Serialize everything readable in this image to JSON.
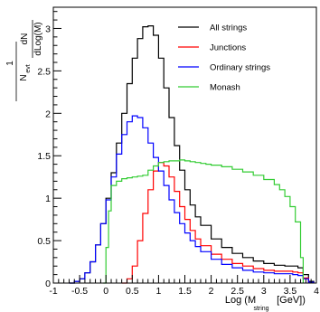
{
  "chart_data": {
    "type": "line",
    "title": "",
    "xlabel_main": "Log (M",
    "xlabel_sub": "string",
    "xlabel_tail": "[GeV])",
    "ylabel_prefix": "1",
    "ylabel_N": "N",
    "ylabel_N_sub": "evt",
    "ylabel_num": "dN",
    "ylabel_den": "dLog(M)",
    "xlim": [
      -1,
      4
    ],
    "ylim": [
      0,
      3.25
    ],
    "xticks": [
      -1,
      -0.5,
      0,
      0.5,
      1,
      1.5,
      2,
      2.5,
      3,
      3.5,
      4
    ],
    "xtick_labels": [
      "-1",
      "-0.5",
      "0",
      "0.5",
      "1",
      "1.5",
      "2",
      "2.5",
      "3",
      "3.5",
      "4"
    ],
    "yticks": [
      0,
      0.5,
      1,
      1.5,
      2,
      2.5,
      3
    ],
    "ytick_labels": [
      "0",
      "0.5",
      "1",
      "1.5",
      "2",
      "2.5",
      "3"
    ],
    "grid": false,
    "legend_position": "top-right",
    "series": [
      {
        "name": "All strings",
        "color": "#000000",
        "points": [
          [
            -0.7,
            0
          ],
          [
            -0.6,
            0.02
          ],
          [
            -0.5,
            0.05
          ],
          [
            -0.4,
            0.12
          ],
          [
            -0.3,
            0.25
          ],
          [
            -0.2,
            0.45
          ],
          [
            -0.1,
            0.7
          ],
          [
            0.0,
            1.0
          ],
          [
            0.1,
            1.3
          ],
          [
            0.2,
            1.65
          ],
          [
            0.3,
            2.0
          ],
          [
            0.4,
            2.35
          ],
          [
            0.5,
            2.65
          ],
          [
            0.6,
            2.88
          ],
          [
            0.7,
            3.02
          ],
          [
            0.8,
            3.03
          ],
          [
            0.9,
            2.92
          ],
          [
            1.0,
            2.65
          ],
          [
            1.1,
            2.3
          ],
          [
            1.2,
            1.95
          ],
          [
            1.3,
            1.62
          ],
          [
            1.4,
            1.33
          ],
          [
            1.5,
            1.1
          ],
          [
            1.6,
            0.92
          ],
          [
            1.7,
            0.78
          ],
          [
            1.8,
            0.68
          ],
          [
            2.0,
            0.52
          ],
          [
            2.2,
            0.42
          ],
          [
            2.4,
            0.35
          ],
          [
            2.6,
            0.3
          ],
          [
            2.8,
            0.26
          ],
          [
            3.0,
            0.23
          ],
          [
            3.2,
            0.21
          ],
          [
            3.4,
            0.2
          ],
          [
            3.55,
            0.2
          ],
          [
            3.65,
            0.18
          ],
          [
            3.75,
            0.1
          ],
          [
            3.85,
            0.02
          ],
          [
            3.95,
            0
          ]
        ]
      },
      {
        "name": "Junctions",
        "color": "#ff0000",
        "points": [
          [
            0.3,
            0
          ],
          [
            0.4,
            0.05
          ],
          [
            0.5,
            0.2
          ],
          [
            0.6,
            0.5
          ],
          [
            0.7,
            0.82
          ],
          [
            0.8,
            1.1
          ],
          [
            0.9,
            1.32
          ],
          [
            1.0,
            1.42
          ],
          [
            1.1,
            1.38
          ],
          [
            1.2,
            1.25
          ],
          [
            1.3,
            1.08
          ],
          [
            1.4,
            0.9
          ],
          [
            1.5,
            0.75
          ],
          [
            1.6,
            0.62
          ],
          [
            1.7,
            0.52
          ],
          [
            1.8,
            0.44
          ],
          [
            2.0,
            0.34
          ],
          [
            2.2,
            0.28
          ],
          [
            2.4,
            0.23
          ],
          [
            2.6,
            0.2
          ],
          [
            2.8,
            0.17
          ],
          [
            3.0,
            0.15
          ],
          [
            3.2,
            0.14
          ],
          [
            3.4,
            0.14
          ],
          [
            3.55,
            0.13
          ],
          [
            3.65,
            0.12
          ],
          [
            3.75,
            0.06
          ],
          [
            3.85,
            0.01
          ],
          [
            3.95,
            0
          ]
        ]
      },
      {
        "name": "Ordinary strings",
        "color": "#0000ff",
        "points": [
          [
            -0.7,
            0
          ],
          [
            -0.6,
            0.02
          ],
          [
            -0.5,
            0.05
          ],
          [
            -0.4,
            0.12
          ],
          [
            -0.3,
            0.25
          ],
          [
            -0.2,
            0.45
          ],
          [
            -0.1,
            0.7
          ],
          [
            0.0,
            0.98
          ],
          [
            0.1,
            1.25
          ],
          [
            0.2,
            1.52
          ],
          [
            0.3,
            1.75
          ],
          [
            0.4,
            1.9
          ],
          [
            0.5,
            1.97
          ],
          [
            0.6,
            1.95
          ],
          [
            0.7,
            1.83
          ],
          [
            0.8,
            1.65
          ],
          [
            0.9,
            1.48
          ],
          [
            1.0,
            1.32
          ],
          [
            1.1,
            1.15
          ],
          [
            1.2,
            0.98
          ],
          [
            1.3,
            0.83
          ],
          [
            1.4,
            0.7
          ],
          [
            1.5,
            0.59
          ],
          [
            1.6,
            0.5
          ],
          [
            1.7,
            0.43
          ],
          [
            1.8,
            0.37
          ],
          [
            2.0,
            0.28
          ],
          [
            2.2,
            0.22
          ],
          [
            2.4,
            0.18
          ],
          [
            2.6,
            0.15
          ],
          [
            2.8,
            0.13
          ],
          [
            3.0,
            0.12
          ],
          [
            3.2,
            0.11
          ],
          [
            3.4,
            0.11
          ],
          [
            3.55,
            0.1
          ],
          [
            3.65,
            0.09
          ],
          [
            3.75,
            0.05
          ],
          [
            3.85,
            0.01
          ],
          [
            3.95,
            0
          ]
        ]
      },
      {
        "name": "Monash",
        "color": "#33cc33",
        "points": [
          [
            -0.05,
            0
          ],
          [
            0.0,
            0.42
          ],
          [
            0.05,
            0.85
          ],
          [
            0.1,
            1.15
          ],
          [
            0.2,
            1.2
          ],
          [
            0.3,
            1.23
          ],
          [
            0.4,
            1.24
          ],
          [
            0.5,
            1.25
          ],
          [
            0.6,
            1.26
          ],
          [
            0.7,
            1.27
          ],
          [
            0.8,
            1.33
          ],
          [
            0.9,
            1.38
          ],
          [
            1.0,
            1.42
          ],
          [
            1.1,
            1.43
          ],
          [
            1.2,
            1.44
          ],
          [
            1.3,
            1.44
          ],
          [
            1.4,
            1.45
          ],
          [
            1.5,
            1.44
          ],
          [
            1.6,
            1.43
          ],
          [
            1.7,
            1.42
          ],
          [
            1.8,
            1.41
          ],
          [
            1.9,
            1.4
          ],
          [
            2.0,
            1.39
          ],
          [
            2.2,
            1.37
          ],
          [
            2.4,
            1.34
          ],
          [
            2.6,
            1.31
          ],
          [
            2.8,
            1.27
          ],
          [
            3.0,
            1.22
          ],
          [
            3.2,
            1.16
          ],
          [
            3.3,
            1.1
          ],
          [
            3.4,
            1.02
          ],
          [
            3.5,
            0.9
          ],
          [
            3.6,
            0.72
          ],
          [
            3.7,
            0.3
          ],
          [
            3.75,
            0
          ]
        ]
      }
    ]
  }
}
